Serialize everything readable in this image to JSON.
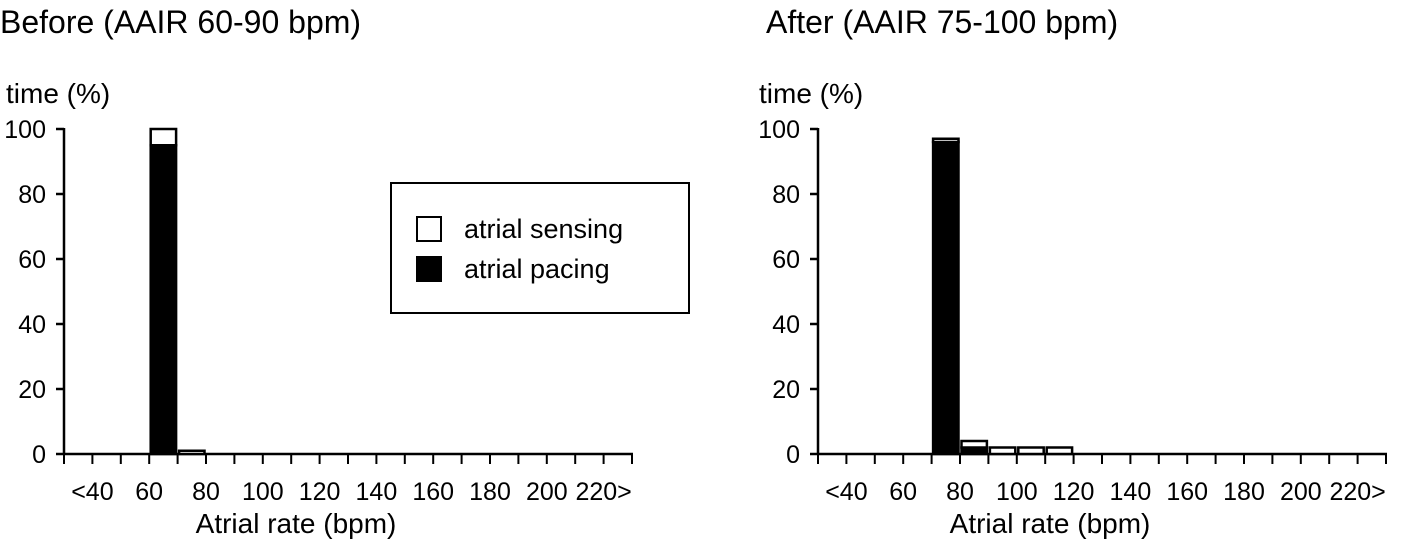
{
  "legend": {
    "items": [
      {
        "label": "atrial sensing",
        "color": "#ffffff"
      },
      {
        "label": "atrial pacing",
        "color": "#000000"
      }
    ]
  },
  "chart_data": [
    {
      "type": "bar",
      "stacked": true,
      "title": "Before (AAIR 60-90 bpm)",
      "ylabel": "time (%)",
      "xlabel": "Atrial rate (bpm)",
      "ylim": [
        0,
        100
      ],
      "yticks": [
        "0",
        "20",
        "40",
        "60",
        "80",
        "100"
      ],
      "xtick_labels": [
        "<40",
        "60",
        "80",
        "100",
        "120",
        "140",
        "160",
        "180",
        "200",
        "220>"
      ],
      "categories": [
        "<40",
        "40-50",
        "50-60",
        "60-70",
        "70-80",
        "80-90",
        "90-100",
        "100-110",
        "110-120",
        "120-130",
        "130-140",
        "140-150",
        "150-160",
        "160-170",
        "170-180",
        "180-190",
        "190-200",
        "200-210",
        "210-220",
        ">220"
      ],
      "series": [
        {
          "name": "atrial pacing",
          "values": [
            0,
            0,
            0,
            95,
            0,
            0,
            0,
            0,
            0,
            0,
            0,
            0,
            0,
            0,
            0,
            0,
            0,
            0,
            0,
            0
          ]
        },
        {
          "name": "atrial sensing",
          "values": [
            0,
            0,
            0,
            5,
            1,
            0,
            0,
            0,
            0,
            0,
            0,
            0,
            0,
            0,
            0,
            0,
            0,
            0,
            0,
            0
          ]
        }
      ]
    },
    {
      "type": "bar",
      "stacked": true,
      "title": "After (AAIR 75-100 bpm)",
      "ylabel": "time (%)",
      "xlabel": "Atrial rate (bpm)",
      "ylim": [
        0,
        100
      ],
      "yticks": [
        "0",
        "20",
        "40",
        "60",
        "80",
        "100"
      ],
      "xtick_labels": [
        "<40",
        "60",
        "80",
        "100",
        "120",
        "140",
        "160",
        "180",
        "200",
        "220>"
      ],
      "categories": [
        "<40",
        "40-50",
        "50-60",
        "60-70",
        "70-80",
        "80-90",
        "90-100",
        "100-110",
        "110-120",
        "120-130",
        "130-140",
        "140-150",
        "150-160",
        "160-170",
        "170-180",
        "180-190",
        "190-200",
        "200-210",
        "210-220",
        ">220"
      ],
      "series": [
        {
          "name": "atrial pacing",
          "values": [
            0,
            0,
            0,
            0,
            96,
            2,
            0,
            0,
            0,
            0,
            0,
            0,
            0,
            0,
            0,
            0,
            0,
            0,
            0,
            0
          ]
        },
        {
          "name": "atrial sensing",
          "values": [
            0,
            0,
            0,
            0,
            1,
            2,
            2,
            2,
            2,
            0,
            0,
            0,
            0,
            0,
            0,
            0,
            0,
            0,
            0,
            0
          ]
        }
      ]
    }
  ]
}
